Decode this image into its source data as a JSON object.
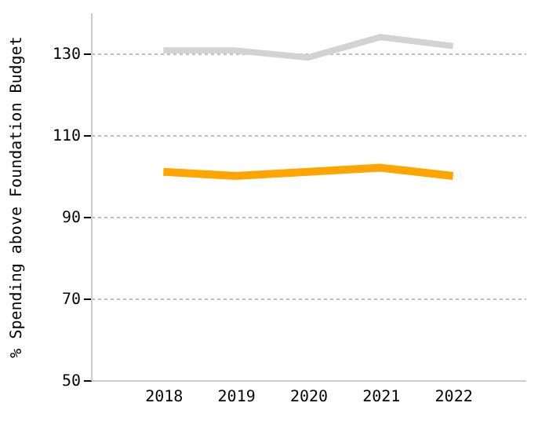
{
  "chart_data": {
    "type": "line",
    "ylabel": "% Spending above Foundation Budget",
    "x": [
      2018,
      2019,
      2020,
      2021,
      2022
    ],
    "xlim": [
      2017,
      2023
    ],
    "xticks": [
      2018,
      2019,
      2020,
      2021,
      2022
    ],
    "ylim": [
      50,
      140
    ],
    "yticks": [
      50,
      70,
      90,
      110,
      130
    ],
    "grid": "y",
    "marker": "none",
    "line_style": "solid",
    "series": [
      {
        "color": "#d3d3d3",
        "values": [
          130.7,
          130.7,
          129,
          134,
          131.8
        ]
      },
      {
        "color": "#ffa500",
        "values": [
          101,
          100,
          101,
          102,
          100
        ]
      }
    ]
  }
}
